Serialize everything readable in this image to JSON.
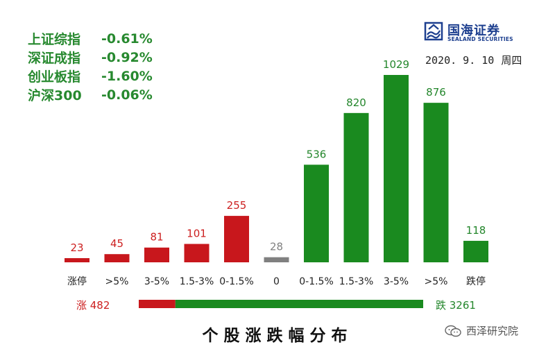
{
  "indices": [
    {
      "name": "上证综指",
      "value": "-0.61%"
    },
    {
      "name": "深证成指",
      "value": "-0.92%"
    },
    {
      "name": "创业板指",
      "value": "-1.60%"
    },
    {
      "name": "沪深300",
      "value": "-0.06%"
    }
  ],
  "brand": {
    "cn": "国海证券",
    "en": "SEALAND SECURITIES",
    "logo_icon": "sealand-logo-icon"
  },
  "date": {
    "date": "2020. 9. 10",
    "weekday": "周四"
  },
  "summary": {
    "up_label": "涨 482",
    "down_label": "跌 3261",
    "up_count": 482,
    "down_count": 3261,
    "up_color": "#c8171c",
    "down_color": "#1a8a1f"
  },
  "caption": "个股涨跌幅分布",
  "watermark": {
    "icon": "wechat-icon",
    "text": "西泽研究院"
  },
  "colors": {
    "up": "#c8171c",
    "flat": "#808080",
    "down": "#1a8a1f",
    "up_text": "#cc1f1f",
    "flat_text": "#808080",
    "down_text": "#23862b"
  },
  "chart_data": {
    "type": "bar",
    "title": "个股涨跌幅分布",
    "categories": [
      "涨停",
      ">5%",
      "3-5%",
      "1.5-3%",
      "0-1.5%",
      "0",
      "0-1.5%",
      "1.5-3%",
      "3-5%",
      ">5%",
      "跌停"
    ],
    "values": [
      23,
      45,
      81,
      101,
      255,
      28,
      536,
      820,
      1029,
      876,
      118
    ],
    "groups": [
      "up",
      "up",
      "up",
      "up",
      "up",
      "flat",
      "down",
      "down",
      "down",
      "down",
      "down"
    ],
    "ylim": [
      0,
      1029
    ],
    "grid": false,
    "legend": "none"
  }
}
